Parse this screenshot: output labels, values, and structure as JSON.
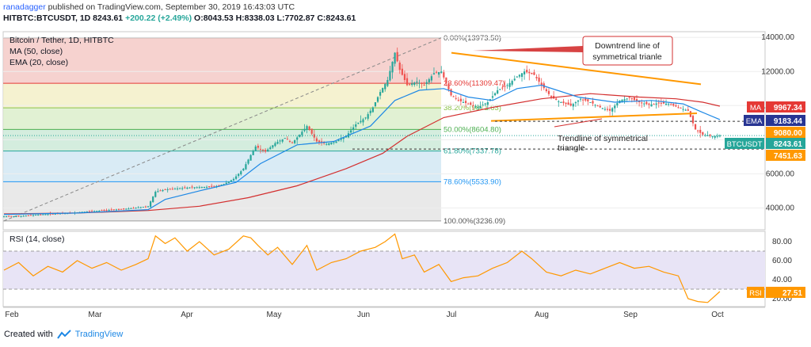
{
  "header": {
    "author": "ranadagger",
    "published_text": "published on TradingView.com, September 30, 2019 16:43:03 UTC",
    "symbol": "HITBTC:BTCUSDT, 1D",
    "last": "8243.61",
    "change": "+200.22 (+2.49%)",
    "ohlc": "O:8043.53 H:8338.03 L:7702.87 C:8243.61"
  },
  "legend": {
    "title": "Bitcoin / Tether, 1D, HITBTC",
    "ma": "MA (50, close)",
    "ema": "EMA (20, close)"
  },
  "colors": {
    "candle_up": "#26a69a",
    "candle_down": "#ef5350",
    "ma": "#d32f2f",
    "ema": "#1e88e5",
    "rsi": "#ff9800",
    "trend": "#ff9800",
    "annotation": "#d32f2f"
  },
  "chart_data": [
    {
      "type": "candlestick",
      "title": "Bitcoin / Tether, 1D, HITBTC",
      "x_ticks": [
        "Feb",
        "Mar",
        "Apr",
        "May",
        "Jun",
        "Jul",
        "Aug",
        "Sep",
        "Oct"
      ],
      "y_ticks": [
        "14000.00",
        "12000.00",
        "10000.00",
        "8000.00",
        "6000.00",
        "4000.00"
      ],
      "y_range": [
        3000,
        14400
      ],
      "price_path": [
        [
          0,
          3500
        ],
        [
          7,
          3520
        ],
        [
          13,
          3600
        ],
        [
          20,
          3650
        ],
        [
          27,
          3700
        ],
        [
          32,
          3770
        ],
        [
          36,
          3800
        ],
        [
          40,
          3850
        ],
        [
          45,
          3900
        ],
        [
          50,
          3950
        ],
        [
          55,
          4030
        ],
        [
          59,
          4100
        ],
        [
          62,
          4950
        ],
        [
          66,
          5080
        ],
        [
          72,
          5150
        ],
        [
          76,
          5200
        ],
        [
          80,
          5220
        ],
        [
          86,
          5250
        ],
        [
          90,
          5400
        ],
        [
          94,
          5700
        ],
        [
          98,
          6300
        ],
        [
          101,
          7100
        ],
        [
          103,
          7600
        ],
        [
          107,
          7300
        ],
        [
          111,
          7800
        ],
        [
          115,
          8100
        ],
        [
          118,
          7800
        ],
        [
          121,
          8300
        ],
        [
          124,
          8800
        ],
        [
          128,
          7900
        ],
        [
          132,
          7750
        ],
        [
          136,
          7900
        ],
        [
          140,
          8200
        ],
        [
          144,
          8900
        ],
        [
          148,
          9300
        ],
        [
          151,
          9900
        ],
        [
          154,
          10800
        ],
        [
          157,
          11500
        ],
        [
          160,
          13100
        ],
        [
          162,
          12100
        ],
        [
          165,
          11200
        ],
        [
          169,
          11400
        ],
        [
          172,
          11200
        ],
        [
          176,
          11900
        ],
        [
          179,
          12000
        ],
        [
          183,
          10600
        ],
        [
          186,
          10300
        ],
        [
          190,
          10100
        ],
        [
          194,
          9900
        ],
        [
          198,
          10200
        ],
        [
          202,
          10900
        ],
        [
          206,
          11200
        ],
        [
          210,
          11700
        ],
        [
          213,
          12000
        ],
        [
          217,
          11800
        ],
        [
          220,
          11200
        ],
        [
          224,
          10500
        ],
        [
          227,
          10250
        ],
        [
          232,
          10000
        ],
        [
          236,
          10400
        ],
        [
          240,
          10200
        ],
        [
          244,
          9900
        ],
        [
          248,
          9700
        ],
        [
          252,
          10300
        ],
        [
          256,
          10450
        ],
        [
          260,
          10200
        ],
        [
          264,
          10050
        ],
        [
          268,
          10150
        ],
        [
          272,
          10100
        ],
        [
          276,
          9900
        ],
        [
          280,
          9700
        ],
        [
          283,
          8600
        ],
        [
          286,
          8300
        ],
        [
          290,
          8200
        ],
        [
          293,
          8243.61
        ]
      ],
      "ma": {
        "name": "MA",
        "value": "9967.34",
        "path": [
          [
            0,
            3650
          ],
          [
            30,
            3700
          ],
          [
            59,
            3850
          ],
          [
            80,
            4100
          ],
          [
            100,
            4600
          ],
          [
            120,
            5300
          ],
          [
            140,
            6300
          ],
          [
            155,
            7200
          ],
          [
            165,
            8200
          ],
          [
            180,
            9300
          ],
          [
            200,
            9900
          ],
          [
            220,
            10400
          ],
          [
            240,
            10700
          ],
          [
            260,
            10500
          ],
          [
            275,
            10400
          ],
          [
            286,
            10200
          ],
          [
            293,
            9967.34
          ]
        ]
      },
      "ema": {
        "name": "EMA",
        "value": "9183.44",
        "path": [
          [
            0,
            3620
          ],
          [
            30,
            3700
          ],
          [
            59,
            3900
          ],
          [
            66,
            4500
          ],
          [
            80,
            5000
          ],
          [
            95,
            5500
          ],
          [
            105,
            6600
          ],
          [
            120,
            7700
          ],
          [
            135,
            7900
          ],
          [
            150,
            8800
          ],
          [
            160,
            10300
          ],
          [
            170,
            10900
          ],
          [
            180,
            11000
          ],
          [
            190,
            10500
          ],
          [
            200,
            10300
          ],
          [
            210,
            11000
          ],
          [
            220,
            11200
          ],
          [
            235,
            10500
          ],
          [
            250,
            10200
          ],
          [
            265,
            10300
          ],
          [
            278,
            10100
          ],
          [
            286,
            9600
          ],
          [
            293,
            9183.44
          ]
        ]
      },
      "fibonacci": [
        {
          "label": "0.00%(13973.50)",
          "value": 13973.5
        },
        {
          "label": "23.60%(11309.47)",
          "value": 11309.47
        },
        {
          "label": "38.20%(9871.63)",
          "value": 9871.63
        },
        {
          "label": "50.00%(8604.80)",
          "value": 8604.8
        },
        {
          "label": "61.80%(7337.78)",
          "value": 7337.78
        },
        {
          "label": "78.60%(5533.90)",
          "value": 5533.9
        },
        {
          "label": "100.00%(3236.09)",
          "value": 3236.09
        }
      ],
      "price_labels": [
        {
          "label": "MA",
          "value": "9967.34"
        },
        {
          "label": "EMA",
          "value": "9183.44"
        },
        {
          "label": "",
          "value": "9080.00"
        },
        {
          "label": "BTCUSDT",
          "value": "8243.61"
        },
        {
          "label": "",
          "value": "7451.63"
        }
      ],
      "annotations": [
        "Downtrend line of symmetrical trianle",
        "Trendline of symmetrical triangle"
      ]
    },
    {
      "type": "line",
      "title": "RSI (14, close)",
      "y_ticks": [
        "80.00",
        "60.00",
        "40.00",
        "20.00"
      ],
      "y_range": [
        14,
        96
      ],
      "band": [
        30,
        70
      ],
      "rsi_label": "RSI",
      "rsi_value": "27.51",
      "path": [
        [
          0,
          50
        ],
        [
          6,
          58
        ],
        [
          12,
          44
        ],
        [
          18,
          54
        ],
        [
          24,
          48
        ],
        [
          30,
          60
        ],
        [
          36,
          52
        ],
        [
          42,
          58
        ],
        [
          48,
          50
        ],
        [
          54,
          56
        ],
        [
          59,
          62
        ],
        [
          62,
          86
        ],
        [
          66,
          78
        ],
        [
          70,
          84
        ],
        [
          75,
          70
        ],
        [
          80,
          80
        ],
        [
          86,
          66
        ],
        [
          92,
          72
        ],
        [
          98,
          86
        ],
        [
          101,
          84
        ],
        [
          104,
          76
        ],
        [
          108,
          66
        ],
        [
          112,
          74
        ],
        [
          118,
          56
        ],
        [
          124,
          76
        ],
        [
          128,
          50
        ],
        [
          134,
          58
        ],
        [
          140,
          62
        ],
        [
          146,
          70
        ],
        [
          152,
          74
        ],
        [
          156,
          80
        ],
        [
          160,
          88
        ],
        [
          163,
          62
        ],
        [
          168,
          66
        ],
        [
          172,
          48
        ],
        [
          178,
          56
        ],
        [
          183,
          38
        ],
        [
          188,
          42
        ],
        [
          194,
          44
        ],
        [
          200,
          52
        ],
        [
          206,
          58
        ],
        [
          212,
          70
        ],
        [
          216,
          62
        ],
        [
          222,
          48
        ],
        [
          228,
          44
        ],
        [
          234,
          50
        ],
        [
          240,
          46
        ],
        [
          246,
          52
        ],
        [
          252,
          58
        ],
        [
          258,
          52
        ],
        [
          264,
          54
        ],
        [
          270,
          48
        ],
        [
          276,
          44
        ],
        [
          280,
          20
        ],
        [
          284,
          17
        ],
        [
          288,
          16
        ],
        [
          293,
          27.51
        ]
      ]
    }
  ],
  "footer": {
    "prefix": "Created with",
    "brand": "TradingView"
  }
}
